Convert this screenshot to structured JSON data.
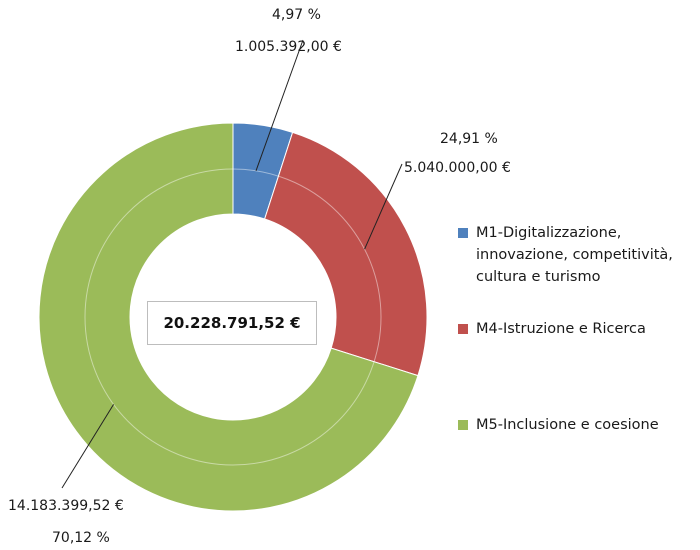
{
  "chart_data": {
    "type": "pie",
    "donut": true,
    "center_label": "20.228.791,52 €",
    "slices": [
      {
        "name": "M1-Digitalizzazione, innovazione, competitività, cultura e turismo",
        "value": 1005392.0,
        "percent": 4.97,
        "value_label": "1.005.392,00 €",
        "percent_label": "4,97 %",
        "color": "#4f81bd"
      },
      {
        "name": "M4-Istruzione e Ricerca",
        "value": 5040000.0,
        "percent": 24.91,
        "value_label": "5.040.000,00 €",
        "percent_label": "24,91 %",
        "color": "#c0504d"
      },
      {
        "name": "M5-Inclusione e coesione",
        "value": 14183399.52,
        "percent": 70.12,
        "value_label": "14.183.399,52 €",
        "percent_label": "70,12 %",
        "color": "#9bbb59"
      }
    ],
    "legend_position": "right"
  }
}
